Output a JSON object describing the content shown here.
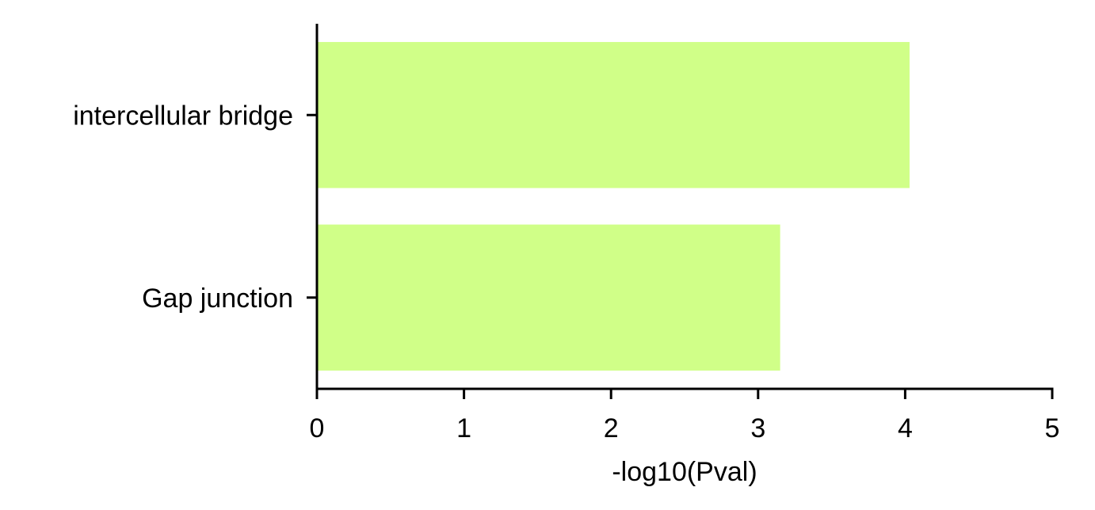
{
  "chart_data": {
    "type": "bar",
    "orientation": "horizontal",
    "categories": [
      "intercellular bridge",
      "Gap junction"
    ],
    "values": [
      4.03,
      3.15
    ],
    "xlabel": "-log10(Pval)",
    "ylabel": "",
    "xlim": [
      0,
      5
    ],
    "xticks": [
      "0",
      "1",
      "2",
      "3",
      "4",
      "5"
    ],
    "grid": false,
    "bar_color": "#d0ff88",
    "axis_color": "#000000"
  }
}
